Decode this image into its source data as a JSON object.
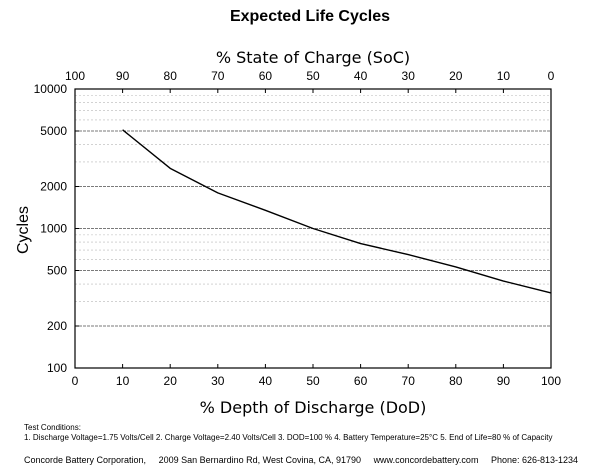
{
  "chart_data": {
    "type": "line",
    "title": "Expected Life Cycles",
    "xlabel": "% Depth of Discharge (DoD)",
    "x2label": "% State of Charge (SoC)",
    "ylabel": "Cycles",
    "xlim": [
      0,
      100
    ],
    "ylim": [
      100,
      10000
    ],
    "yscale": "log",
    "grid": true,
    "x_ticks": [
      0,
      10,
      20,
      30,
      40,
      50,
      60,
      70,
      80,
      90,
      100
    ],
    "x2_ticks": [
      100,
      90,
      80,
      70,
      60,
      50,
      40,
      30,
      20,
      10,
      0
    ],
    "y_ticks": [
      100,
      200,
      500,
      1000,
      2000,
      5000,
      10000
    ],
    "series": [
      {
        "x": [
          10,
          20,
          30,
          40,
          50,
          60,
          70,
          80,
          90,
          100
        ],
        "y": [
          5100,
          2700,
          1800,
          1350,
          1000,
          780,
          650,
          530,
          420,
          345
        ]
      }
    ]
  },
  "notes": {
    "heading": "Test Conditions:",
    "conditions": "1. Discharge Voltage=1.75 Volts/Cell  2. Charge Voltage=2.40 Volts/Cell  3. DOD=100 %  4. Battery Temperature=25°C  5. End of Life=80 % of Capacity"
  },
  "footer": {
    "company": "Concorde Battery Corporation,",
    "address": "2009 San Bernardino Rd,  West Covina,  CA,  91790",
    "website": "www.concordebattery.com",
    "phone": "Phone: 626-813-1234"
  }
}
